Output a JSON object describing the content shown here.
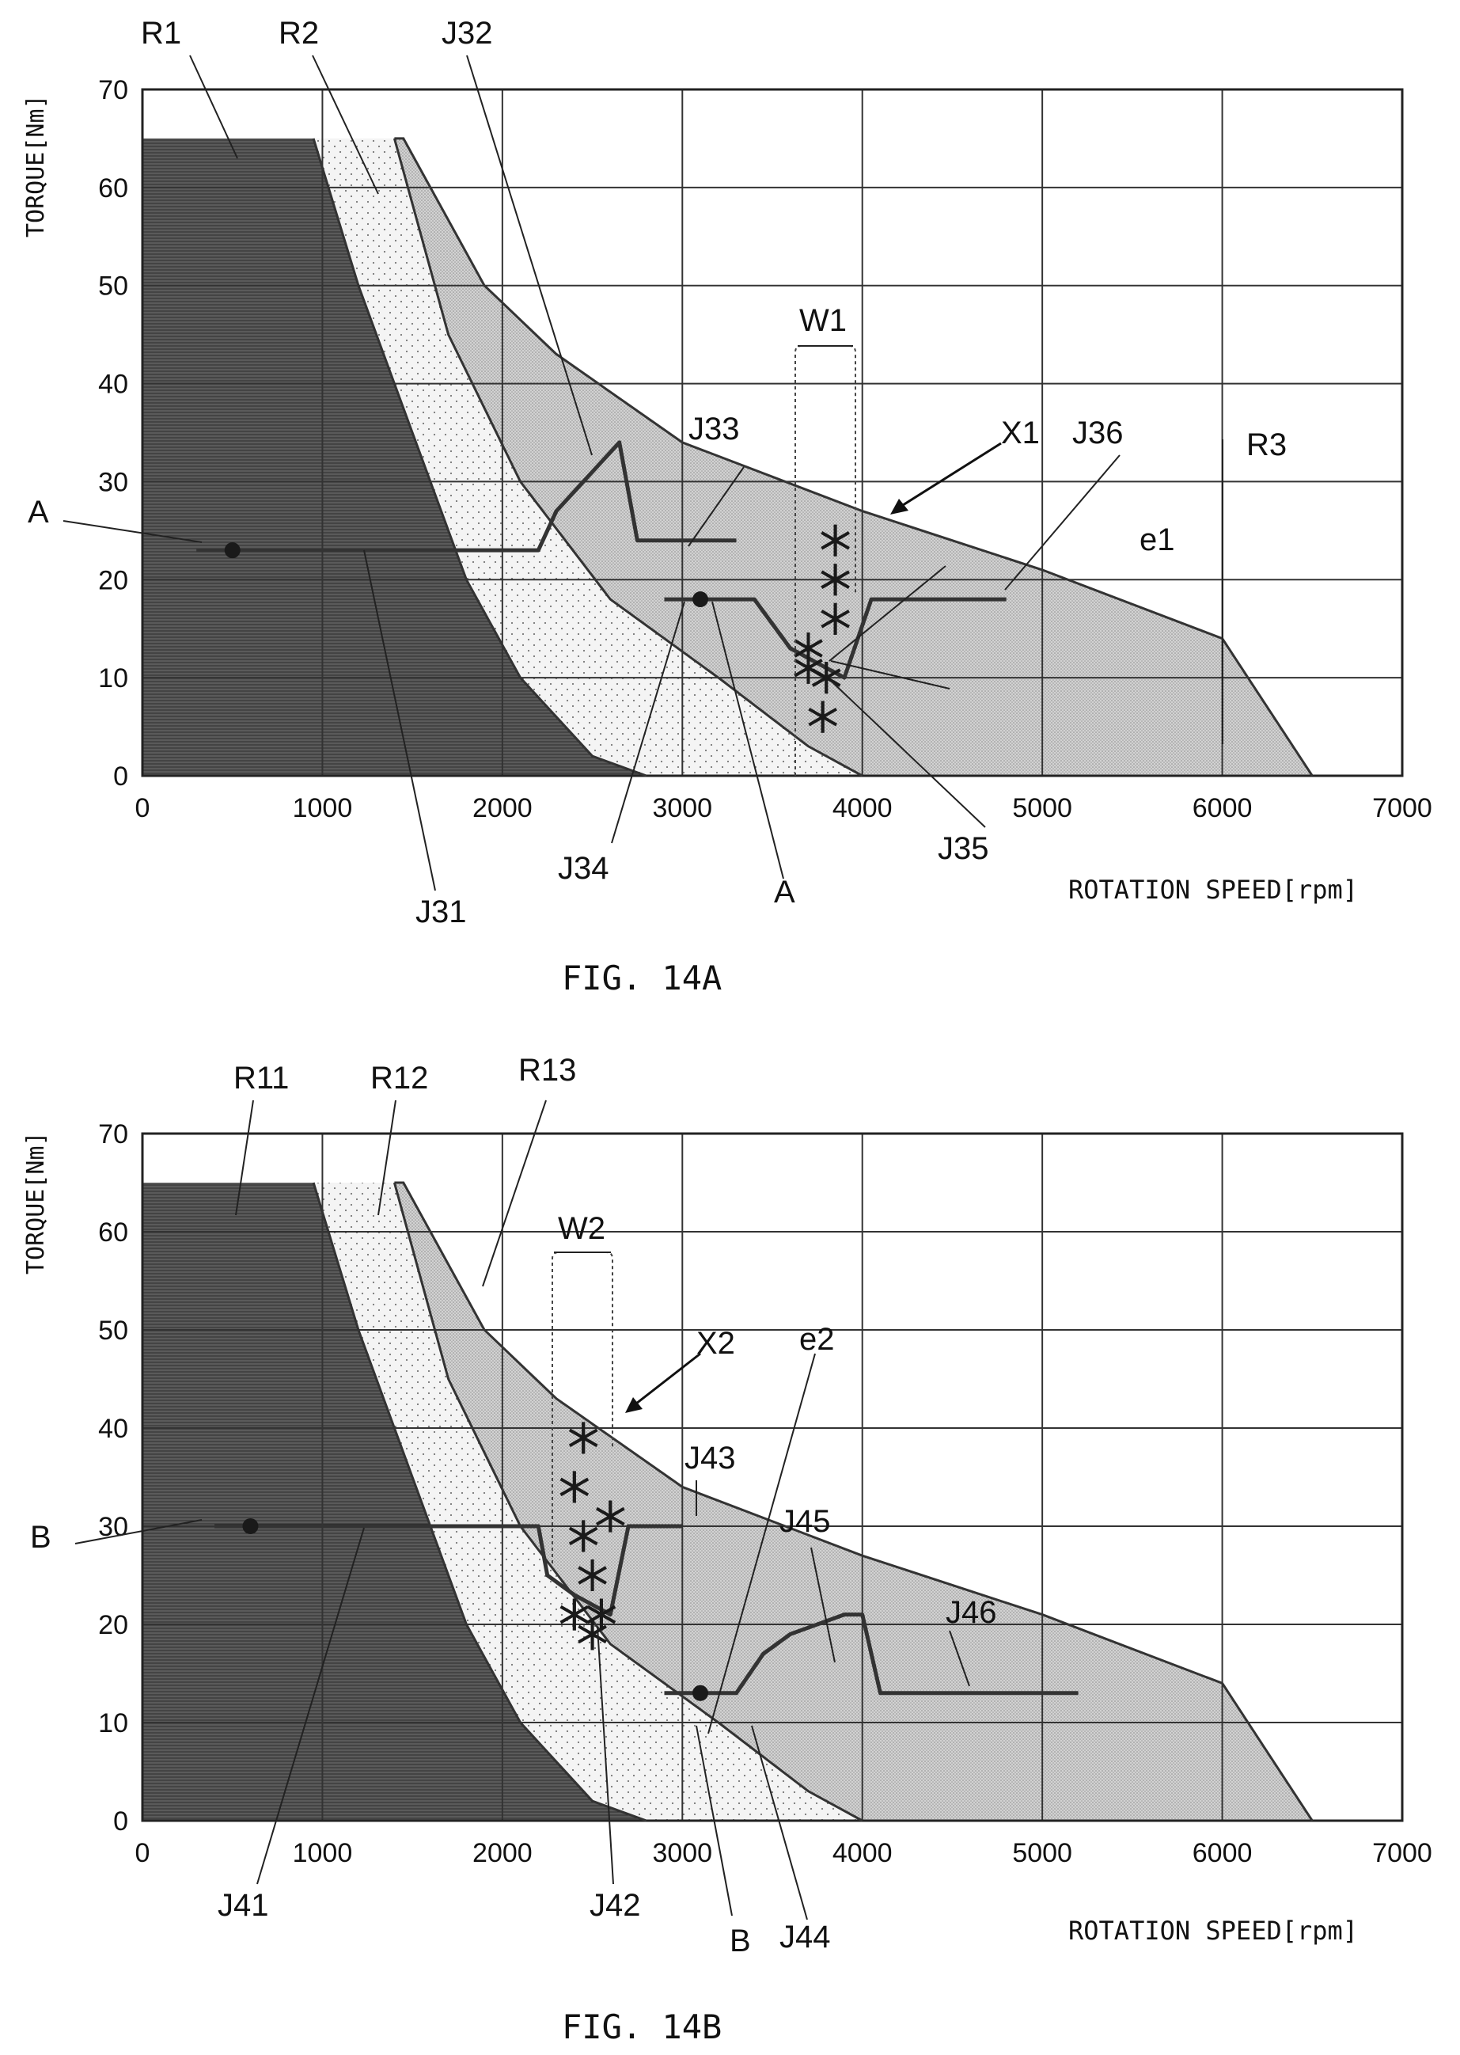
{
  "colors": {
    "region_r1": "#5e5e5e",
    "region_r2": "#f1f1f1",
    "region_r3": "#c9c9c9",
    "grid": "#333333",
    "line": "#333333",
    "text": "#111111"
  },
  "chart_data": [
    {
      "type": "area",
      "figure_label": "FIG. 14A",
      "ylabel": "TORQUE[Nm]",
      "xlabel": "ROTATION SPEED[rpm]",
      "xlim": [
        0,
        7000
      ],
      "ylim": [
        0,
        70
      ],
      "x_ticks": [
        0,
        1000,
        2000,
        3000,
        4000,
        5000,
        6000,
        7000
      ],
      "y_ticks": [
        0,
        10,
        20,
        30,
        40,
        50,
        60,
        70
      ],
      "grid": true,
      "regions": [
        {
          "name": "R1",
          "fill": "dark",
          "points": [
            [
              0,
              0
            ],
            [
              0,
              65
            ],
            [
              950,
              65
            ],
            [
              1200,
              50
            ],
            [
              1500,
              35
            ],
            [
              1800,
              20
            ],
            [
              2100,
              10
            ],
            [
              2500,
              2
            ],
            [
              2800,
              0
            ]
          ]
        },
        {
          "name": "R2",
          "fill": "light",
          "points": [
            [
              950,
              65
            ],
            [
              1400,
              65
            ],
            [
              1700,
              45
            ],
            [
              2100,
              30
            ],
            [
              2600,
              18
            ],
            [
              3200,
              10
            ],
            [
              3700,
              3
            ],
            [
              4000,
              0
            ],
            [
              2800,
              0
            ],
            [
              2500,
              2
            ],
            [
              2100,
              10
            ],
            [
              1800,
              20
            ],
            [
              1500,
              35
            ],
            [
              1200,
              50
            ]
          ]
        },
        {
          "name": "R3",
          "fill": "medium",
          "points": [
            [
              1400,
              65
            ],
            [
              1450,
              65
            ],
            [
              1900,
              50
            ],
            [
              2300,
              43
            ],
            [
              3000,
              34
            ],
            [
              4000,
              27
            ],
            [
              5000,
              21
            ],
            [
              6000,
              14
            ],
            [
              6500,
              0
            ],
            [
              4000,
              0
            ],
            [
              3700,
              3
            ],
            [
              3200,
              10
            ],
            [
              2600,
              18
            ],
            [
              2100,
              30
            ],
            [
              1700,
              45
            ]
          ]
        }
      ],
      "operating_lines": [
        {
          "name": "J31-J33",
          "points": [
            [
              300,
              23
            ],
            [
              2200,
              23
            ],
            [
              2300,
              27
            ],
            [
              2650,
              34
            ],
            [
              2750,
              24
            ],
            [
              3300,
              24
            ]
          ]
        },
        {
          "name": "J34-J36",
          "points": [
            [
              2900,
              18
            ],
            [
              3400,
              18
            ],
            [
              3600,
              13
            ],
            [
              3700,
              12
            ],
            [
              3900,
              10
            ],
            [
              4050,
              18
            ],
            [
              4800,
              18
            ]
          ]
        }
      ],
      "markers": [
        {
          "type": "dot",
          "x": 500,
          "y": 23
        },
        {
          "type": "dot",
          "x": 3100,
          "y": 18
        }
      ],
      "star_markers": [
        [
          3850,
          24
        ],
        [
          3850,
          20
        ],
        [
          3850,
          16
        ],
        [
          3700,
          13
        ],
        [
          3700,
          11
        ],
        [
          3800,
          10
        ],
        [
          3780,
          6
        ]
      ],
      "dashed_box": {
        "label": "W1",
        "x": [
          3700,
          4000
        ],
        "y_bottom": 3
      },
      "labels": {
        "R1": "R1",
        "R2": "R2",
        "J32": "J32",
        "W1": "W1",
        "J33": "J33",
        "X1": "X1",
        "J36": "J36",
        "R3": "R3",
        "A_left": "A",
        "e1": "e1",
        "J31": "J31",
        "J34": "J34",
        "A_bottom": "A",
        "J35": "J35"
      }
    },
    {
      "type": "area",
      "figure_label": "FIG. 14B",
      "ylabel": "TORQUE[Nm]",
      "xlabel": "ROTATION SPEED[rpm]",
      "xlim": [
        0,
        7000
      ],
      "ylim": [
        0,
        70
      ],
      "x_ticks": [
        0,
        1000,
        2000,
        3000,
        4000,
        5000,
        6000,
        7000
      ],
      "y_ticks": [
        0,
        10,
        20,
        30,
        40,
        50,
        60,
        70
      ],
      "grid": true,
      "regions": [
        {
          "name": "R11",
          "fill": "dark",
          "points": [
            [
              0,
              0
            ],
            [
              0,
              65
            ],
            [
              950,
              65
            ],
            [
              1200,
              50
            ],
            [
              1500,
              35
            ],
            [
              1800,
              20
            ],
            [
              2100,
              10
            ],
            [
              2500,
              2
            ],
            [
              2800,
              0
            ]
          ]
        },
        {
          "name": "R12",
          "fill": "light",
          "points": [
            [
              950,
              65
            ],
            [
              1400,
              65
            ],
            [
              1700,
              45
            ],
            [
              2100,
              30
            ],
            [
              2600,
              18
            ],
            [
              3200,
              10
            ],
            [
              3700,
              3
            ],
            [
              4000,
              0
            ],
            [
              2800,
              0
            ],
            [
              2500,
              2
            ],
            [
              2100,
              10
            ],
            [
              1800,
              20
            ],
            [
              1500,
              35
            ],
            [
              1200,
              50
            ]
          ]
        },
        {
          "name": "R13",
          "fill": "medium",
          "points": [
            [
              1400,
              65
            ],
            [
              1450,
              65
            ],
            [
              1900,
              50
            ],
            [
              2300,
              43
            ],
            [
              3000,
              34
            ],
            [
              4000,
              27
            ],
            [
              5000,
              21
            ],
            [
              6000,
              14
            ],
            [
              6500,
              0
            ],
            [
              4000,
              0
            ],
            [
              3700,
              3
            ],
            [
              3200,
              10
            ],
            [
              2600,
              18
            ],
            [
              2100,
              30
            ],
            [
              1700,
              45
            ]
          ]
        }
      ],
      "operating_lines": [
        {
          "name": "J41-J43",
          "points": [
            [
              400,
              30
            ],
            [
              2200,
              30
            ],
            [
              2250,
              25
            ],
            [
              2400,
              23
            ],
            [
              2600,
              21
            ],
            [
              2700,
              30
            ],
            [
              3000,
              30
            ]
          ]
        },
        {
          "name": "J44-J46",
          "points": [
            [
              2900,
              13
            ],
            [
              3300,
              13
            ],
            [
              3450,
              17
            ],
            [
              3600,
              19
            ],
            [
              3900,
              21
            ],
            [
              4000,
              21
            ],
            [
              4100,
              13
            ],
            [
              5200,
              13
            ]
          ]
        }
      ],
      "markers": [
        {
          "type": "dot",
          "x": 600,
          "y": 30
        },
        {
          "type": "dot",
          "x": 3100,
          "y": 13
        }
      ],
      "star_markers": [
        [
          2450,
          39
        ],
        [
          2400,
          34
        ],
        [
          2600,
          31
        ],
        [
          2450,
          29
        ],
        [
          2500,
          25
        ],
        [
          2400,
          21
        ],
        [
          2550,
          21
        ],
        [
          2500,
          19
        ]
      ],
      "dashed_box": {
        "label": "W2",
        "x": [
          2300,
          2600
        ],
        "y_bottom": 40
      },
      "labels": {
        "R11": "R11",
        "R12": "R12",
        "R13": "R13",
        "W2": "W2",
        "X2": "X2",
        "e2": "e2",
        "B_left": "B",
        "J43": "J43",
        "J45": "J45",
        "J46": "J46",
        "J41": "J41",
        "J42": "J42",
        "B_bottom": "B",
        "J44": "J44"
      }
    }
  ]
}
